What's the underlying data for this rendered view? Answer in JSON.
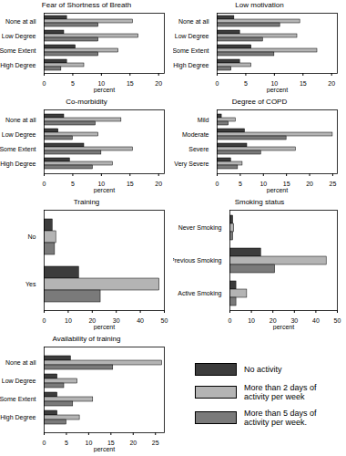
{
  "chart_data": [
    {
      "type": "bar",
      "orientation": "horizontal",
      "title": "Fear of Shortness of Breath",
      "categories": [
        "None at all",
        "Low Degree",
        "Some Extent",
        "High Degree"
      ],
      "series": [
        {
          "name": "No activity",
          "color": "#3c3c3c",
          "values": [
            4,
            3.5,
            5.5,
            4
          ]
        },
        {
          "name": "More than 2 days of activity per week",
          "color": "#b4b4b4",
          "values": [
            15.5,
            16.5,
            13,
            7
          ]
        },
        {
          "name": "More than 5 days of activity per week.",
          "color": "#7a7a7a",
          "values": [
            9.5,
            9.5,
            9.5,
            3
          ]
        }
      ],
      "xlim": [
        0,
        21
      ],
      "xticks": [
        0,
        5,
        10,
        15,
        20
      ],
      "xlabel": "percent"
    },
    {
      "type": "bar",
      "orientation": "horizontal",
      "title": "Low motivation",
      "categories": [
        "None at all",
        "Low Degree",
        "Some Extent",
        "High Degree"
      ],
      "series": [
        {
          "name": "No activity",
          "color": "#3c3c3c",
          "values": [
            3,
            4,
            6,
            4
          ]
        },
        {
          "name": "More than 2 days of activity per week",
          "color": "#b4b4b4",
          "values": [
            14.5,
            14,
            17.5,
            6
          ]
        },
        {
          "name": "More than 5 days of activity per week.",
          "color": "#7a7a7a",
          "values": [
            11,
            8,
            10,
            2.5
          ]
        }
      ],
      "xlim": [
        0,
        21
      ],
      "xticks": [
        0,
        5,
        10,
        15,
        20
      ],
      "xlabel": "percent"
    },
    {
      "type": "bar",
      "orientation": "horizontal",
      "title": "Co-morbidity",
      "categories": [
        "None at all",
        "Low Degree",
        "Some Extent",
        "High Degree"
      ],
      "series": [
        {
          "name": "No activity",
          "color": "#3c3c3c",
          "values": [
            3.5,
            2.5,
            7,
            4.5
          ]
        },
        {
          "name": "More than 2 days of activity per week",
          "color": "#b4b4b4",
          "values": [
            13.5,
            9.5,
            15.5,
            12
          ]
        },
        {
          "name": "More than 5 days of activity per week.",
          "color": "#7a7a7a",
          "values": [
            9,
            5,
            10,
            8.5
          ]
        }
      ],
      "xlim": [
        0,
        21
      ],
      "xticks": [
        0,
        5,
        10,
        15,
        20
      ],
      "xlabel": "percent"
    },
    {
      "type": "bar",
      "orientation": "horizontal",
      "title": "Degree of COPD",
      "categories": [
        "Mild",
        "Moderate",
        "Severe",
        "Very Severe"
      ],
      "series": [
        {
          "name": "No activity",
          "color": "#3c3c3c",
          "values": [
            1,
            6,
            6.5,
            3
          ]
        },
        {
          "name": "More than 2 days of activity per week",
          "color": "#b4b4b4",
          "values": [
            4,
            25,
            17,
            5.5
          ]
        },
        {
          "name": "More than 5 days of activity per week.",
          "color": "#7a7a7a",
          "values": [
            2.5,
            15,
            9.5,
            4.5
          ]
        }
      ],
      "xlim": [
        0,
        26
      ],
      "xticks": [
        0,
        5,
        10,
        15,
        20,
        25
      ],
      "xlabel": "percent"
    },
    {
      "type": "bar",
      "orientation": "horizontal",
      "title": "Training",
      "categories": [
        "No",
        "Yes"
      ],
      "series": [
        {
          "name": "No activity",
          "color": "#3c3c3c",
          "values": [
            3.5,
            14.5
          ]
        },
        {
          "name": "More than 2 days of activity per week",
          "color": "#b4b4b4",
          "values": [
            5,
            48
          ]
        },
        {
          "name": "More than 5 days of activity per week.",
          "color": "#7a7a7a",
          "values": [
            4.5,
            23.5
          ]
        }
      ],
      "xlim": [
        0,
        50
      ],
      "xticks": [
        0,
        10,
        20,
        30,
        40,
        50
      ],
      "xlabel": "percent"
    },
    {
      "type": "bar",
      "orientation": "horizontal",
      "title": "Smoking status",
      "categories": [
        "Never Smoking",
        "Previous Smoking",
        "Active Smoking"
      ],
      "series": [
        {
          "name": "No activity",
          "color": "#3c3c3c",
          "values": [
            1.5,
            14.5,
            3
          ]
        },
        {
          "name": "More than 2 days of activity per week",
          "color": "#b4b4b4",
          "values": [
            2,
            45,
            8
          ]
        },
        {
          "name": "More than 5 days of activity per week.",
          "color": "#7a7a7a",
          "values": [
            1.5,
            21,
            3
          ]
        }
      ],
      "xlim": [
        0,
        50
      ],
      "xticks": [
        0,
        10,
        20,
        30,
        40,
        50
      ],
      "xlabel": "percent"
    },
    {
      "type": "bar",
      "orientation": "horizontal",
      "title": "Availability of training",
      "categories": [
        "None at all",
        "Low Degree",
        "Some Extent",
        "High Degree"
      ],
      "series": [
        {
          "name": "No activity",
          "color": "#3c3c3c",
          "values": [
            6,
            3,
            3,
            3
          ]
        },
        {
          "name": "More than 2 days of activity per week",
          "color": "#b4b4b4",
          "values": [
            26.5,
            7.5,
            11,
            8
          ]
        },
        {
          "name": "More than 5 days of activity per week.",
          "color": "#7a7a7a",
          "values": [
            15.5,
            4.5,
            6.5,
            5
          ]
        }
      ],
      "xlim": [
        0,
        27
      ],
      "xticks": [
        0,
        5,
        10,
        15,
        20,
        25
      ],
      "xlabel": "percent"
    }
  ]
}
